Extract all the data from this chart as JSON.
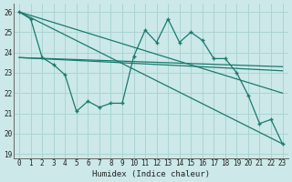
{
  "title": "",
  "xlabel": "Humidex (Indice chaleur)",
  "xlim": [
    -0.5,
    23.5
  ],
  "ylim": [
    18.8,
    26.4
  ],
  "yticks": [
    19,
    20,
    21,
    22,
    23,
    24,
    25,
    26
  ],
  "xticks": [
    0,
    1,
    2,
    3,
    4,
    5,
    6,
    7,
    8,
    9,
    10,
    11,
    12,
    13,
    14,
    15,
    16,
    17,
    18,
    19,
    20,
    21,
    22,
    23
  ],
  "bg_color": "#cce8e8",
  "grid_color": "#aad4d4",
  "line_color": "#1a7a6e",
  "series_main": {
    "x": [
      0,
      1,
      2,
      3,
      4,
      5,
      6,
      7,
      8,
      9,
      10,
      11,
      12,
      13,
      14,
      15,
      16,
      17,
      18,
      19,
      20,
      21,
      22,
      23
    ],
    "y": [
      26.0,
      25.65,
      23.75,
      23.4,
      22.9,
      21.1,
      21.6,
      21.3,
      21.5,
      21.5,
      23.8,
      25.1,
      24.5,
      25.65,
      24.5,
      25.0,
      24.6,
      23.7,
      23.7,
      23.0,
      21.9,
      20.5,
      20.7,
      19.5
    ]
  },
  "trend_lines": [
    {
      "x": [
        0,
        23
      ],
      "y": [
        26.0,
        19.5
      ]
    },
    {
      "x": [
        0,
        23
      ],
      "y": [
        26.0,
        22.0
      ]
    },
    {
      "x": [
        0,
        23
      ],
      "y": [
        23.75,
        23.1
      ]
    },
    {
      "x": [
        0,
        23
      ],
      "y": [
        23.75,
        23.3
      ]
    }
  ]
}
